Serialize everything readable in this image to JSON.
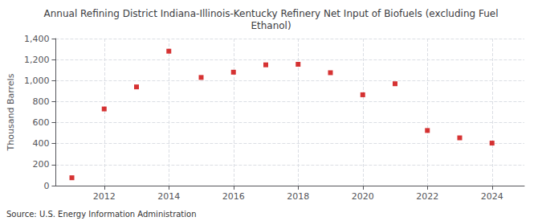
{
  "chart_data": {
    "type": "scatter",
    "title": "Annual Refining District Indiana-Illinois-Kentucky Refinery Net Input of Biofuels (excluding Fuel\nEthanol)",
    "ylabel": "Thousand Barrels",
    "annotation": "Source: U.S. Energy Information Administration",
    "x": [
      2011,
      2012,
      2013,
      2014,
      2015,
      2016,
      2017,
      2018,
      2019,
      2020,
      2021,
      2022,
      2023,
      2024
    ],
    "values": [
      75,
      730,
      940,
      1280,
      1030,
      1080,
      1150,
      1155,
      1075,
      865,
      970,
      525,
      455,
      405
    ],
    "color": "#cc0000",
    "marker": "square",
    "xlim": [
      2010.5,
      2025.0
    ],
    "xticks": [
      2012,
      2014,
      2016,
      2018,
      2020,
      2022,
      2024
    ],
    "ylim": [
      0,
      1400
    ],
    "yticks": [
      0,
      200,
      400,
      600,
      800,
      {
        "value": 1000,
        "label": "1,000"
      },
      {
        "value": 1200,
        "label": "1,200"
      },
      {
        "value": 1400,
        "label": "1,400"
      }
    ],
    "grid": true
  }
}
